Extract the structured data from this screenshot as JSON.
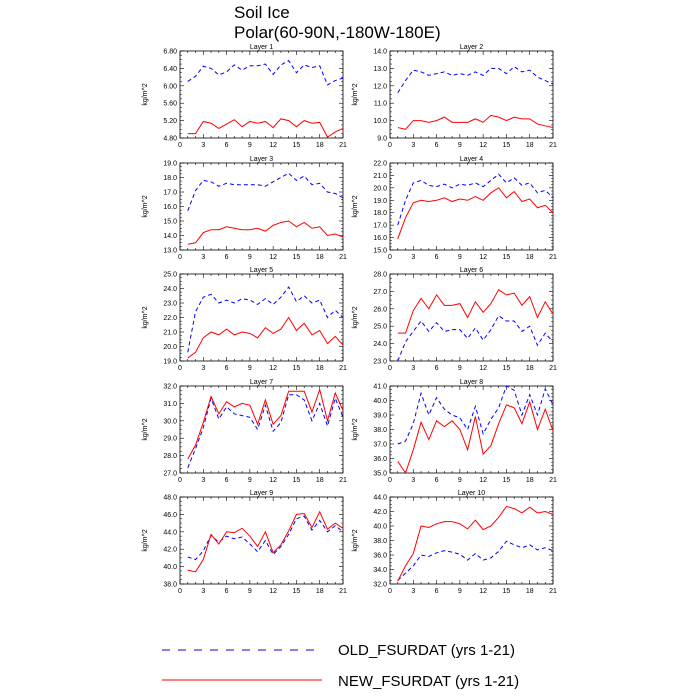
{
  "title": {
    "line1": "Soil Ice",
    "line2": "Polar(60-90N,-180W-180E)"
  },
  "legend": {
    "old_label": "OLD_FSURDAT (yrs 1-21)",
    "new_label": "NEW_FSURDAT (yrs 1-21)",
    "old_color": "#0000ff",
    "new_color": "#ff0000"
  },
  "chart_data": [
    {
      "type": "line",
      "title": "Layer 1",
      "ylabel": "kg/m^2",
      "x": [
        1,
        2,
        3,
        4,
        5,
        6,
        7,
        8,
        9,
        10,
        11,
        12,
        13,
        14,
        15,
        16,
        17,
        18,
        19,
        20,
        21
      ],
      "xlim": [
        0,
        21
      ],
      "xticks": [
        0,
        3,
        6,
        9,
        12,
        15,
        18,
        21
      ],
      "ylim": [
        4.8,
        6.8
      ],
      "yticks": [
        "4.80",
        "5.20",
        "5.60",
        "6.00",
        "6.40",
        "6.80"
      ],
      "series": [
        {
          "name": "OLD_FSURDAT (yrs 1-21)",
          "values": [
            6.1,
            6.22,
            6.45,
            6.4,
            6.25,
            6.32,
            6.48,
            6.36,
            6.46,
            6.46,
            6.5,
            6.26,
            6.48,
            6.58,
            6.3,
            6.48,
            6.42,
            6.46,
            6.02,
            6.12,
            6.18
          ]
        },
        {
          "name": "NEW_FSURDAT (yrs 1-21)",
          "values": [
            4.9,
            4.9,
            5.18,
            5.14,
            5.02,
            5.12,
            5.22,
            5.06,
            5.18,
            5.14,
            5.18,
            5.04,
            5.24,
            5.2,
            5.06,
            5.2,
            5.14,
            5.16,
            4.82,
            4.94,
            5.02
          ]
        }
      ]
    },
    {
      "type": "line",
      "title": "Layer 2",
      "ylabel": "kg/m^2",
      "x": [
        1,
        2,
        3,
        4,
        5,
        6,
        7,
        8,
        9,
        10,
        11,
        12,
        13,
        14,
        15,
        16,
        17,
        18,
        19,
        20,
        21
      ],
      "xlim": [
        0,
        21
      ],
      "xticks": [
        0,
        3,
        6,
        9,
        12,
        15,
        18,
        21
      ],
      "ylim": [
        9.0,
        14.0
      ],
      "yticks": [
        "9.0",
        "10.0",
        "11.0",
        "12.0",
        "13.0",
        "14.0"
      ],
      "series": [
        {
          "name": "OLD_FSURDAT (yrs 1-21)",
          "values": [
            11.6,
            12.3,
            12.9,
            12.8,
            12.6,
            12.7,
            12.8,
            12.6,
            12.7,
            12.6,
            12.8,
            12.6,
            13.0,
            13.0,
            12.7,
            13.1,
            12.8,
            12.9,
            12.5,
            12.3,
            12.1
          ]
        },
        {
          "name": "NEW_FSURDAT (yrs 1-21)",
          "values": [
            9.6,
            9.5,
            10.0,
            10.0,
            9.9,
            10.0,
            10.2,
            9.9,
            9.9,
            9.9,
            10.1,
            9.9,
            10.3,
            10.2,
            10.0,
            10.2,
            10.1,
            10.1,
            9.8,
            9.7,
            9.6
          ]
        }
      ]
    },
    {
      "type": "line",
      "title": "Layer 3",
      "ylabel": "kg/m^2",
      "x": [
        1,
        2,
        3,
        4,
        5,
        6,
        7,
        8,
        9,
        10,
        11,
        12,
        13,
        14,
        15,
        16,
        17,
        18,
        19,
        20,
        21
      ],
      "xlim": [
        0,
        21
      ],
      "xticks": [
        0,
        3,
        6,
        9,
        12,
        15,
        18,
        21
      ],
      "ylim": [
        13.0,
        19.0
      ],
      "yticks": [
        "13.0",
        "14.0",
        "15.0",
        "16.0",
        "17.0",
        "18.0",
        "19.0"
      ],
      "series": [
        {
          "name": "OLD_FSURDAT (yrs 1-21)",
          "values": [
            15.7,
            17.1,
            17.8,
            17.7,
            17.4,
            17.6,
            17.5,
            17.5,
            17.5,
            17.5,
            17.4,
            17.7,
            18.0,
            18.3,
            17.8,
            18.1,
            17.5,
            17.6,
            17.0,
            16.9,
            16.6
          ]
        },
        {
          "name": "NEW_FSURDAT (yrs 1-21)",
          "values": [
            13.4,
            13.5,
            14.2,
            14.4,
            14.4,
            14.6,
            14.5,
            14.4,
            14.4,
            14.5,
            14.3,
            14.7,
            14.9,
            15.0,
            14.6,
            14.9,
            14.5,
            14.6,
            14.0,
            14.1,
            13.9
          ]
        }
      ]
    },
    {
      "type": "line",
      "title": "Layer 4",
      "ylabel": "kg/m^2",
      "x": [
        1,
        2,
        3,
        4,
        5,
        6,
        7,
        8,
        9,
        10,
        11,
        12,
        13,
        14,
        15,
        16,
        17,
        18,
        19,
        20,
        21
      ],
      "xlim": [
        0,
        21
      ],
      "xticks": [
        0,
        3,
        6,
        9,
        12,
        15,
        18,
        21
      ],
      "ylim": [
        15.0,
        22.0
      ],
      "yticks": [
        "15.0",
        "16.0",
        "17.0",
        "18.0",
        "19.0",
        "20.0",
        "21.0",
        "22.0"
      ],
      "series": [
        {
          "name": "OLD_FSURDAT (yrs 1-21)",
          "values": [
            17.0,
            19.0,
            20.4,
            20.6,
            20.2,
            20.1,
            20.3,
            20.0,
            20.3,
            20.2,
            20.4,
            20.1,
            20.6,
            21.1,
            20.4,
            20.8,
            20.2,
            20.4,
            19.6,
            19.8,
            19.2
          ]
        },
        {
          "name": "NEW_FSURDAT (yrs 1-21)",
          "values": [
            15.9,
            17.6,
            18.8,
            19.0,
            18.9,
            19.0,
            19.2,
            18.9,
            19.1,
            19.0,
            19.3,
            19.0,
            19.6,
            20.0,
            19.2,
            19.7,
            18.9,
            19.1,
            18.4,
            18.6,
            18.0
          ]
        }
      ]
    },
    {
      "type": "line",
      "title": "Layer 5",
      "ylabel": "kg/m^2",
      "x": [
        1,
        2,
        3,
        4,
        5,
        6,
        7,
        8,
        9,
        10,
        11,
        12,
        13,
        14,
        15,
        16,
        17,
        18,
        19,
        20,
        21
      ],
      "xlim": [
        0,
        21
      ],
      "xticks": [
        0,
        3,
        6,
        9,
        12,
        15,
        18,
        21
      ],
      "ylim": [
        19.0,
        25.0
      ],
      "yticks": [
        "19.0",
        "20.0",
        "21.0",
        "22.0",
        "23.0",
        "24.0",
        "25.0"
      ],
      "series": [
        {
          "name": "OLD_FSURDAT (yrs 1-21)",
          "values": [
            19.6,
            22.4,
            23.4,
            23.6,
            23.0,
            23.2,
            23.0,
            23.3,
            23.2,
            22.9,
            23.3,
            22.9,
            23.4,
            24.1,
            23.1,
            23.5,
            23.0,
            23.2,
            22.0,
            22.5,
            22.0
          ]
        },
        {
          "name": "NEW_FSURDAT (yrs 1-21)",
          "values": [
            19.2,
            19.6,
            20.6,
            21.0,
            20.8,
            21.2,
            20.8,
            21.0,
            20.9,
            20.6,
            21.3,
            20.9,
            21.2,
            22.0,
            21.1,
            21.6,
            20.8,
            21.1,
            20.2,
            20.7,
            20.1
          ]
        }
      ]
    },
    {
      "type": "line",
      "title": "Layer 6",
      "ylabel": "kg/m^2",
      "x": [
        1,
        2,
        3,
        4,
        5,
        6,
        7,
        8,
        9,
        10,
        11,
        12,
        13,
        14,
        15,
        16,
        17,
        18,
        19,
        20,
        21
      ],
      "xlim": [
        0,
        21
      ],
      "xticks": [
        0,
        3,
        6,
        9,
        12,
        15,
        18,
        21
      ],
      "ylim": [
        23.0,
        28.0
      ],
      "yticks": [
        "23.0",
        "24.0",
        "25.0",
        "26.0",
        "27.0",
        "28.0"
      ],
      "series": [
        {
          "name": "OLD_FSURDAT (yrs 1-21)",
          "values": [
            23.0,
            24.1,
            24.7,
            25.3,
            24.7,
            25.2,
            24.7,
            24.8,
            24.8,
            24.3,
            24.9,
            24.2,
            24.8,
            25.6,
            25.3,
            25.3,
            24.7,
            25.0,
            23.9,
            24.6,
            24.1
          ]
        },
        {
          "name": "NEW_FSURDAT (yrs 1-21)",
          "values": [
            24.6,
            24.6,
            25.9,
            26.6,
            26.0,
            26.8,
            26.2,
            26.2,
            26.3,
            25.5,
            26.4,
            25.8,
            26.3,
            27.1,
            26.8,
            26.9,
            26.2,
            26.7,
            25.5,
            26.4,
            25.7
          ]
        }
      ]
    },
    {
      "type": "line",
      "title": "Layer 7",
      "ylabel": "kg/m^2",
      "x": [
        1,
        2,
        3,
        4,
        5,
        6,
        7,
        8,
        9,
        10,
        11,
        12,
        13,
        14,
        15,
        16,
        17,
        18,
        19,
        20,
        21
      ],
      "xlim": [
        0,
        21
      ],
      "xticks": [
        0,
        3,
        6,
        9,
        12,
        15,
        18,
        21
      ],
      "ylim": [
        27.0,
        32.0
      ],
      "yticks": [
        "27.0",
        "28.0",
        "29.0",
        "30.0",
        "31.0",
        "32.0"
      ],
      "series": [
        {
          "name": "OLD_FSURDAT (yrs 1-21)",
          "values": [
            27.3,
            28.4,
            29.6,
            31.3,
            30.1,
            30.8,
            30.4,
            30.3,
            30.2,
            29.5,
            30.9,
            29.4,
            29.9,
            31.5,
            31.5,
            31.2,
            30.0,
            31.0,
            29.7,
            31.3,
            30.2
          ]
        },
        {
          "name": "NEW_FSURDAT (yrs 1-21)",
          "values": [
            27.8,
            28.6,
            29.9,
            31.4,
            30.4,
            31.1,
            30.8,
            31.0,
            30.9,
            29.8,
            31.2,
            29.8,
            30.3,
            31.7,
            31.7,
            31.7,
            30.5,
            31.8,
            30.0,
            31.6,
            30.6
          ]
        }
      ]
    },
    {
      "type": "line",
      "title": "Layer 8",
      "ylabel": "kg/m^2",
      "x": [
        1,
        2,
        3,
        4,
        5,
        6,
        7,
        8,
        9,
        10,
        11,
        12,
        13,
        14,
        15,
        16,
        17,
        18,
        19,
        20,
        21
      ],
      "xlim": [
        0,
        21
      ],
      "xticks": [
        0,
        3,
        6,
        9,
        12,
        15,
        18,
        21
      ],
      "ylim": [
        35.0,
        41.0
      ],
      "yticks": [
        "35.0",
        "36.0",
        "37.0",
        "38.0",
        "39.0",
        "40.0",
        "41.0"
      ],
      "series": [
        {
          "name": "OLD_FSURDAT (yrs 1-21)",
          "values": [
            37.0,
            37.2,
            38.4,
            40.5,
            39.0,
            40.2,
            39.4,
            39.0,
            38.8,
            38.0,
            39.6,
            37.7,
            38.7,
            39.5,
            41.0,
            40.7,
            39.0,
            40.4,
            39.0,
            40.8,
            39.7
          ]
        },
        {
          "name": "NEW_FSURDAT (yrs 1-21)",
          "values": [
            35.8,
            35.0,
            36.6,
            38.5,
            37.3,
            38.6,
            38.2,
            38.6,
            38.0,
            36.6,
            38.9,
            36.3,
            36.9,
            38.4,
            39.7,
            39.5,
            38.4,
            39.9,
            38.0,
            39.4,
            37.9
          ]
        }
      ]
    },
    {
      "type": "line",
      "title": "Layer 9",
      "ylabel": "kg/m^2",
      "x": [
        1,
        2,
        3,
        4,
        5,
        6,
        7,
        8,
        9,
        10,
        11,
        12,
        13,
        14,
        15,
        16,
        17,
        18,
        19,
        20,
        21
      ],
      "xlim": [
        0,
        21
      ],
      "xticks": [
        0,
        3,
        6,
        9,
        12,
        15,
        18,
        21
      ],
      "ylim": [
        38.0,
        48.0
      ],
      "yticks": [
        "38.0",
        "40.0",
        "42.0",
        "44.0",
        "46.0",
        "48.0"
      ],
      "series": [
        {
          "name": "OLD_FSURDAT (yrs 1-21)",
          "values": [
            41.1,
            40.8,
            41.8,
            43.6,
            42.8,
            43.5,
            43.2,
            43.4,
            42.6,
            41.7,
            43.0,
            41.4,
            42.3,
            43.7,
            45.5,
            45.8,
            44.2,
            45.3,
            44.0,
            44.7,
            44.0
          ]
        },
        {
          "name": "NEW_FSURDAT (yrs 1-21)",
          "values": [
            39.6,
            39.4,
            40.8,
            43.7,
            42.6,
            44.0,
            43.9,
            44.4,
            43.5,
            42.3,
            44.0,
            41.6,
            42.5,
            44.1,
            46.0,
            46.1,
            44.5,
            46.3,
            44.3,
            45.0,
            44.4
          ]
        }
      ]
    },
    {
      "type": "line",
      "title": "Layer 10",
      "ylabel": "kg/m^2",
      "x": [
        1,
        2,
        3,
        4,
        5,
        6,
        7,
        8,
        9,
        10,
        11,
        12,
        13,
        14,
        15,
        16,
        17,
        18,
        19,
        20,
        21
      ],
      "xlim": [
        0,
        21
      ],
      "xticks": [
        0,
        3,
        6,
        9,
        12,
        15,
        18,
        21
      ],
      "ylim": [
        32.0,
        44.0
      ],
      "yticks": [
        "32.0",
        "34.0",
        "36.0",
        "38.0",
        "40.0",
        "42.0",
        "44.0"
      ],
      "series": [
        {
          "name": "OLD_FSURDAT (yrs 1-21)",
          "values": [
            32.5,
            33.5,
            34.5,
            36.0,
            35.8,
            36.3,
            36.6,
            36.4,
            36.1,
            35.3,
            36.2,
            35.3,
            35.6,
            36.5,
            37.9,
            37.4,
            37.0,
            37.4,
            36.7,
            37.0,
            36.6
          ]
        },
        {
          "name": "NEW_FSURDAT (yrs 1-21)",
          "values": [
            32.4,
            34.5,
            36.2,
            40.0,
            39.8,
            40.3,
            40.6,
            40.6,
            40.3,
            39.6,
            40.8,
            39.5,
            40.0,
            41.2,
            42.7,
            42.4,
            41.8,
            42.6,
            41.8,
            42.0,
            41.6
          ]
        }
      ]
    }
  ]
}
